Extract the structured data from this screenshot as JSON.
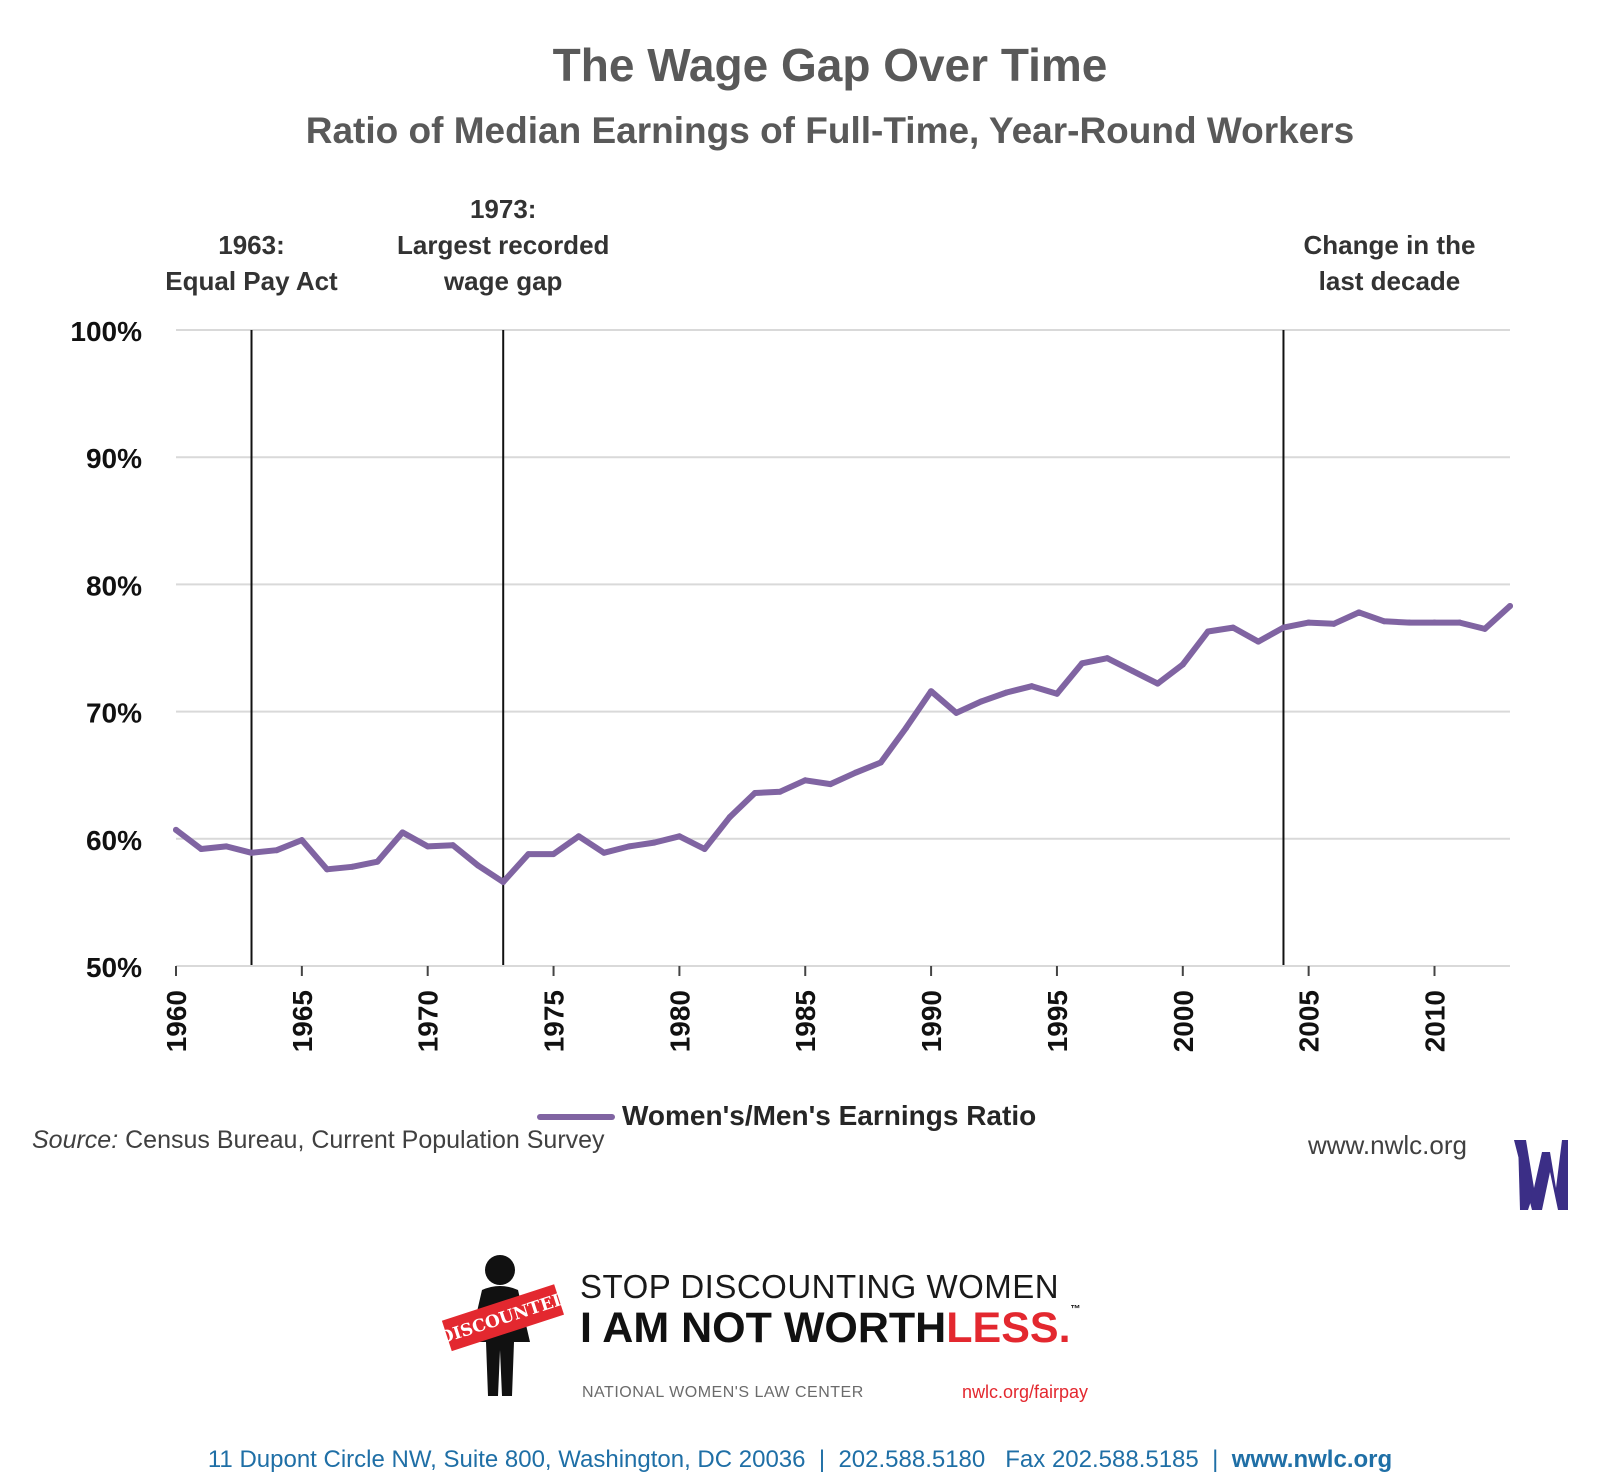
{
  "header": {
    "title": "The Wage Gap Over Time",
    "subtitle": "Ratio of Median Earnings of Full-Time, Year-Round Workers"
  },
  "chart_data": {
    "type": "line",
    "title": "The Wage Gap Over Time",
    "subtitle": "Ratio of Median Earnings of Full-Time, Year-Round Workers",
    "xlabel": "",
    "ylabel": "",
    "xlim": [
      1960,
      2013
    ],
    "ylim": [
      50,
      100
    ],
    "x_ticks": [
      "1960",
      "1965",
      "1970",
      "1975",
      "1980",
      "1985",
      "1990",
      "1995",
      "2000",
      "2005",
      "2010"
    ],
    "x_tick_values": [
      1960,
      1965,
      1970,
      1975,
      1980,
      1985,
      1990,
      1995,
      2000,
      2005,
      2010
    ],
    "y_ticks": [
      "50%",
      "60%",
      "70%",
      "80%",
      "90%",
      "100%"
    ],
    "y_tick_values": [
      50,
      60,
      70,
      80,
      90,
      100
    ],
    "grid": true,
    "legend_position": "bottom",
    "series": [
      {
        "name": "Women's/Men's Earnings Ratio",
        "color": "#8064a2",
        "x": [
          1960,
          1961,
          1962,
          1963,
          1964,
          1965,
          1966,
          1967,
          1968,
          1969,
          1970,
          1971,
          1972,
          1973,
          1974,
          1975,
          1976,
          1977,
          1978,
          1979,
          1980,
          1981,
          1982,
          1983,
          1984,
          1985,
          1986,
          1987,
          1988,
          1989,
          1990,
          1991,
          1992,
          1993,
          1994,
          1995,
          1996,
          1997,
          1998,
          1999,
          2000,
          2001,
          2002,
          2003,
          2004,
          2005,
          2006,
          2007,
          2008,
          2009,
          2010,
          2011,
          2012,
          2013
        ],
        "values": [
          60.7,
          59.2,
          59.4,
          58.9,
          59.1,
          59.9,
          57.6,
          57.8,
          58.2,
          60.5,
          59.4,
          59.5,
          57.9,
          56.6,
          58.8,
          58.8,
          60.2,
          58.9,
          59.4,
          59.7,
          60.2,
          59.2,
          61.7,
          63.6,
          63.7,
          64.6,
          64.3,
          65.2,
          66.0,
          68.7,
          71.6,
          69.9,
          70.8,
          71.5,
          72.0,
          71.4,
          73.8,
          74.2,
          73.2,
          72.2,
          73.7,
          76.3,
          76.6,
          75.5,
          76.6,
          77.0,
          76.9,
          77.8,
          77.1,
          77.0,
          77.0,
          77.0,
          76.5,
          78.3
        ]
      }
    ],
    "annotations": [
      {
        "x": 1963,
        "lines": [
          "1963:",
          "Equal Pay Act"
        ]
      },
      {
        "x": 1973,
        "lines": [
          "1973:",
          "Largest recorded",
          "wage gap"
        ]
      },
      {
        "x": 2004,
        "lines": [
          "Change in the",
          "last decade"
        ]
      }
    ]
  },
  "source": {
    "label": "Source:",
    "text": "Census Bureau, Current Population Survey"
  },
  "branding": {
    "website": "www.nwlc.org",
    "logo_letter": "W",
    "campaign_line1": "STOP DISCOUNTING WOMEN",
    "campaign_line2_main": "I AM NOT WORTH",
    "campaign_line2_accent": "LESS",
    "campaign_line2_end": ".",
    "trademark": "™",
    "stamp_text": "DISCOUNTED",
    "organization": "NATIONAL WOMEN'S LAW CENTER",
    "campaign_url": "nwlc.org/fairpay",
    "accent_color": "#e3282f"
  },
  "footer": {
    "address": "11 Dupont Circle NW, Suite 800, Washington, DC 20036",
    "phone": "202.588.5180",
    "fax": "Fax 202.588.5185",
    "website": "www.nwlc.org",
    "separator": "|"
  }
}
